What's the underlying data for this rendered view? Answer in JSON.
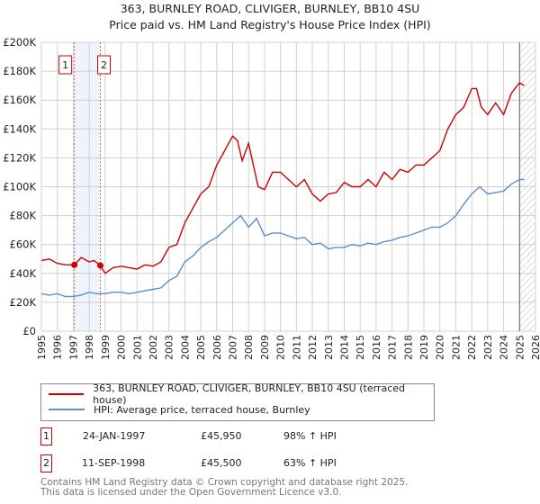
{
  "chart_data": {
    "type": "line",
    "title": "363, BURNLEY ROAD, CLIVIGER, BURNLEY, BB10 4SU",
    "subtitle": "Price paid vs. HM Land Registry's House Price Index (HPI)",
    "xlim": [
      1995,
      2026
    ],
    "ylim": [
      0,
      200000
    ],
    "x_ticks": [
      "1995",
      "1996",
      "1997",
      "1998",
      "1999",
      "2000",
      "2001",
      "2002",
      "2003",
      "2004",
      "2005",
      "2006",
      "2007",
      "2008",
      "2009",
      "2010",
      "2011",
      "2012",
      "2013",
      "2014",
      "2015",
      "2016",
      "2017",
      "2018",
      "2019",
      "2020",
      "2021",
      "2022",
      "2023",
      "2024",
      "2025",
      "2026"
    ],
    "y_ticks": [
      {
        "v": 0,
        "label": "£0"
      },
      {
        "v": 20000,
        "label": "£20K"
      },
      {
        "v": 40000,
        "label": "£40K"
      },
      {
        "v": 60000,
        "label": "£60K"
      },
      {
        "v": 80000,
        "label": "£80K"
      },
      {
        "v": 100000,
        "label": "£100K"
      },
      {
        "v": 120000,
        "label": "£120K"
      },
      {
        "v": 140000,
        "label": "£140K"
      },
      {
        "v": 160000,
        "label": "£160K"
      },
      {
        "v": 180000,
        "label": "£180K"
      },
      {
        "v": 200000,
        "label": "£200K"
      }
    ],
    "grid": true,
    "shaded_range": [
      1997.07,
      1998.7
    ],
    "forecast_hatch_from": 2025.0,
    "series": [
      {
        "name": "363, BURNLEY ROAD, CLIVIGER, BURNLEY, BB10 4SU (terraced house)",
        "color": "#cc0000",
        "x": [
          1995,
          1995.5,
          1996,
          1996.5,
          1997.07,
          1997.5,
          1998,
          1998.3,
          1998.7,
          1999,
          1999.5,
          2000,
          2000.5,
          2001,
          2001.5,
          2002,
          2002.5,
          2003,
          2003.5,
          2004,
          2004.5,
          2005,
          2005.5,
          2006,
          2006.5,
          2007,
          2007.3,
          2007.6,
          2008,
          2008.3,
          2008.6,
          2009,
          2009.5,
          2010,
          2010.5,
          2011,
          2011.5,
          2012,
          2012.5,
          2013,
          2013.5,
          2014,
          2014.5,
          2015,
          2015.5,
          2016,
          2016.5,
          2017,
          2017.5,
          2018,
          2018.5,
          2019,
          2019.5,
          2020,
          2020.5,
          2021,
          2021.5,
          2022,
          2022.3,
          2022.6,
          2023,
          2023.5,
          2024,
          2024.5,
          2025,
          2025.3
        ],
        "y": [
          49000,
          50000,
          47000,
          46000,
          45950,
          51000,
          48000,
          49000,
          45500,
          40000,
          44000,
          45000,
          44000,
          43000,
          46000,
          45000,
          48000,
          58000,
          60000,
          75000,
          85000,
          95000,
          100000,
          115000,
          125000,
          135000,
          132000,
          118000,
          130000,
          115000,
          100000,
          98000,
          110000,
          110000,
          105000,
          100000,
          105000,
          95000,
          90000,
          95000,
          96000,
          103000,
          100000,
          100000,
          105000,
          100000,
          110000,
          105000,
          112000,
          110000,
          115000,
          115000,
          120000,
          125000,
          140000,
          150000,
          155000,
          168000,
          168000,
          155000,
          150000,
          158000,
          150000,
          165000,
          172000,
          170000
        ]
      },
      {
        "name": "HPI: Average price, terraced house, Burnley",
        "color": "#5b8fd0",
        "x": [
          1995,
          1995.5,
          1996,
          1996.5,
          1997,
          1997.5,
          1998,
          1998.5,
          1999,
          1999.5,
          2000,
          2000.5,
          2001,
          2001.5,
          2002,
          2002.5,
          2003,
          2003.5,
          2004,
          2004.5,
          2005,
          2005.5,
          2006,
          2006.5,
          2007,
          2007.5,
          2008,
          2008.5,
          2009,
          2009.5,
          2010,
          2010.5,
          2011,
          2011.5,
          2012,
          2012.5,
          2013,
          2013.5,
          2014,
          2014.5,
          2015,
          2015.5,
          2016,
          2016.5,
          2017,
          2017.5,
          2018,
          2018.5,
          2019,
          2019.5,
          2020,
          2020.5,
          2021,
          2021.5,
          2022,
          2022.5,
          2023,
          2023.5,
          2024,
          2024.5,
          2025,
          2025.3
        ],
        "y": [
          26000,
          25000,
          26000,
          24000,
          24000,
          25000,
          27000,
          26000,
          26000,
          27000,
          27000,
          26000,
          27000,
          28000,
          29000,
          30000,
          35000,
          38000,
          48000,
          52000,
          58000,
          62000,
          65000,
          70000,
          75000,
          80000,
          72000,
          78000,
          66000,
          68000,
          68000,
          66000,
          64000,
          65000,
          60000,
          61000,
          57000,
          58000,
          58000,
          60000,
          59000,
          61000,
          60000,
          62000,
          63000,
          65000,
          66000,
          68000,
          70000,
          72000,
          72000,
          75000,
          80000,
          88000,
          95000,
          100000,
          95000,
          96000,
          97000,
          102000,
          105000,
          105000
        ]
      }
    ],
    "markers": [
      {
        "label": "1",
        "x": 1997.07,
        "y": 45950
      },
      {
        "label": "2",
        "x": 1998.7,
        "y": 45500
      }
    ]
  },
  "legend": {
    "property": "363, BURNLEY ROAD, CLIVIGER, BURNLEY, BB10 4SU (terraced house)",
    "hpi": "HPI: Average price, terraced house, Burnley"
  },
  "sales": [
    {
      "num": "1",
      "date": "24-JAN-1997",
      "price": "£45,950",
      "hpi": "98% ↑ HPI"
    },
    {
      "num": "2",
      "date": "11-SEP-1998",
      "price": "£45,500",
      "hpi": "63% ↑ HPI"
    }
  ],
  "footer": {
    "line1": "Contains HM Land Registry data © Crown copyright and database right 2025.",
    "line2": "This data is licensed under the Open Government Licence v3.0."
  }
}
